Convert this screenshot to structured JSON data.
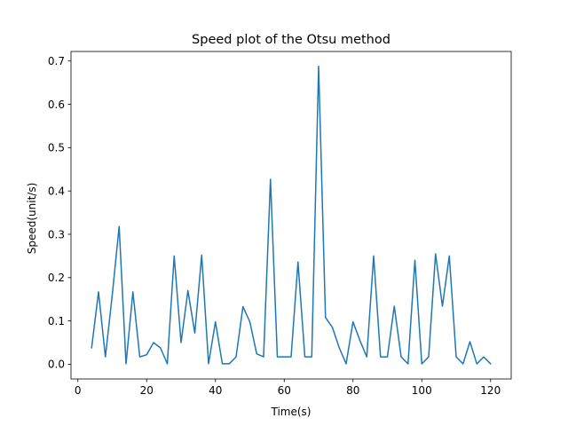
{
  "chart_data": {
    "type": "line",
    "title": "Speed plot of the Otsu method",
    "xlabel": "Time(s)",
    "ylabel": "Speed(unit/s)",
    "xlim": [
      -2,
      126
    ],
    "ylim": [
      -0.034,
      0.722
    ],
    "xticks": [
      0,
      20,
      40,
      60,
      80,
      100,
      120
    ],
    "xtick_labels": [
      "0",
      "20",
      "40",
      "60",
      "80",
      "100",
      "120"
    ],
    "yticks": [
      0.0,
      0.1,
      0.2,
      0.3,
      0.4,
      0.5,
      0.6,
      0.7
    ],
    "ytick_labels": [
      "0.0",
      "0.1",
      "0.2",
      "0.3",
      "0.4",
      "0.5",
      "0.6",
      "0.7"
    ],
    "grid": false,
    "series": [
      {
        "color": "#1f77b4",
        "x": [
          4,
          6,
          8,
          10,
          12,
          14,
          16,
          18,
          20,
          22,
          24,
          26,
          28,
          30,
          32,
          34,
          36,
          38,
          40,
          42,
          44,
          46,
          48,
          50,
          52,
          54,
          56,
          58,
          60,
          62,
          64,
          66,
          68,
          70,
          72,
          74,
          76,
          78,
          80,
          82,
          84,
          86,
          88,
          90,
          92,
          94,
          96,
          98,
          100,
          102,
          104,
          106,
          108,
          110,
          112,
          114,
          116,
          118,
          120
        ],
        "y": [
          0.038,
          0.167,
          0.017,
          0.16,
          0.318,
          0.001,
          0.167,
          0.017,
          0.022,
          0.05,
          0.038,
          0.001,
          0.25,
          0.05,
          0.17,
          0.072,
          0.252,
          0.001,
          0.098,
          0.001,
          0.001,
          0.017,
          0.133,
          0.098,
          0.024,
          0.017,
          0.427,
          0.017,
          0.017,
          0.017,
          0.236,
          0.017,
          0.017,
          0.688,
          0.108,
          0.085,
          0.038,
          0.001,
          0.098,
          0.055,
          0.017,
          0.25,
          0.017,
          0.017,
          0.134,
          0.017,
          0.001,
          0.24,
          0.001,
          0.017,
          0.255,
          0.134,
          0.25,
          0.017,
          0.001,
          0.052,
          0.001,
          0.017,
          0.001
        ]
      }
    ]
  }
}
